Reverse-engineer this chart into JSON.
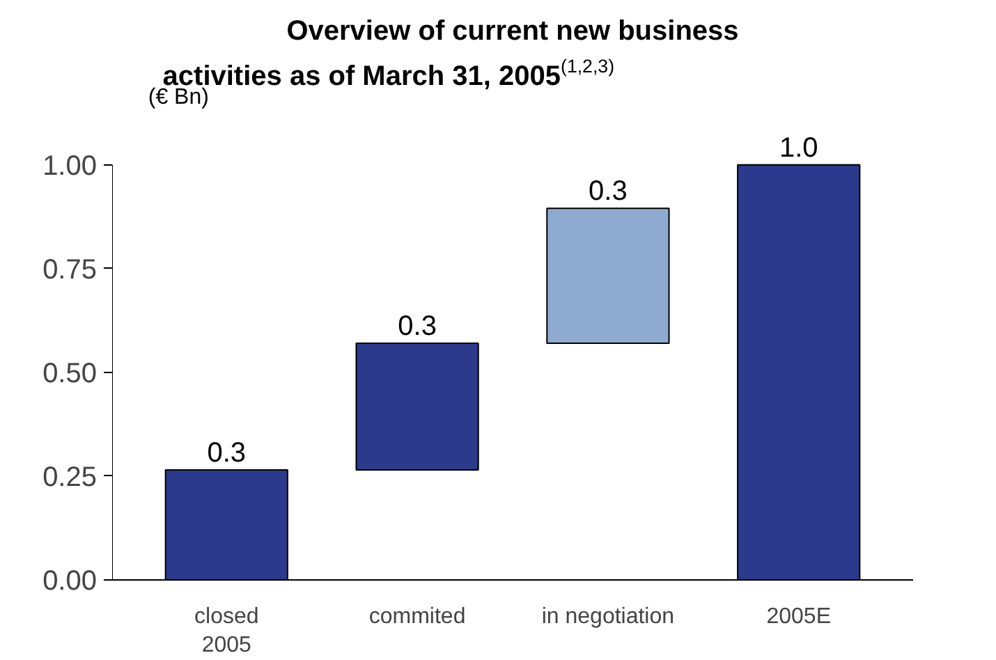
{
  "chart_data": {
    "type": "bar",
    "title": "Overview of current new business activities as of March 31, 2005$^{(1,2,3)}$",
    "ylabel": "(€ Bn)",
    "categories": [
      "closed\n2005",
      "commited",
      "in negotiation",
      "2005E"
    ],
    "values": [
      0.265,
      0.305,
      0.325,
      1.0
    ],
    "base": [
      0,
      0.265,
      0.57,
      0
    ],
    "colors": [
      "#2b3a8c",
      "#2b3a8c",
      "#8eaad0",
      "#2b3a8c"
    ],
    "value_labels": [
      "0.3",
      "0.3",
      "0.3",
      "1.0"
    ],
    "ylim": [
      0,
      1.0
    ],
    "yticks": [
      {
        "value": 0,
        "label": "0.00"
      },
      {
        "value": 0.25,
        "label": "0.25"
      },
      {
        "value": 0.5,
        "label": "0.50"
      },
      {
        "value": 0.75,
        "label": "0.75"
      },
      {
        "value": 1.0,
        "label": "1.00"
      }
    ],
    "grid": false
  }
}
